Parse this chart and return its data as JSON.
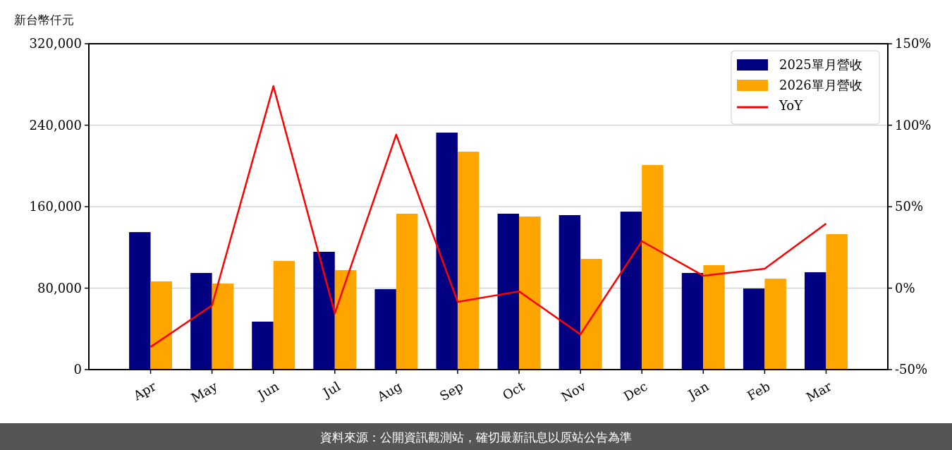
{
  "chart_data": {
    "type": "bar",
    "ylabel": "新台幣仟元",
    "categories": [
      "Apr",
      "May",
      "Jun",
      "Jul",
      "Aug",
      "Sep",
      "Oct",
      "Nov",
      "Dec",
      "Jan",
      "Feb",
      "Mar"
    ],
    "series": [
      {
        "name": "2025單月營收",
        "color": "#000080",
        "values": [
          135000,
          94900,
          47100,
          115700,
          79000,
          232700,
          153100,
          151700,
          155100,
          94900,
          79600,
          95600
        ]
      },
      {
        "name": "2026單月營收",
        "color": "#ffa500",
        "values": [
          86600,
          84500,
          106700,
          97700,
          153100,
          214000,
          150300,
          108700,
          200900,
          102500,
          89300,
          133000
        ]
      },
      {
        "name": "YoY",
        "type": "line",
        "axis": "y2",
        "color": "#ff0000",
        "values": [
          -36.1,
          -10.6,
          124,
          -15.4,
          94.2,
          -8.4,
          -2.0,
          -28.4,
          28.8,
          7.6,
          11.9,
          39.6
        ]
      }
    ],
    "ylim": [
      0,
      320000
    ],
    "yticks": [
      {
        "value": 0,
        "label": "0"
      },
      {
        "value": 80000,
        "label": "80,000"
      },
      {
        "value": 160000,
        "label": "160,000"
      },
      {
        "value": 240000,
        "label": "240,000"
      },
      {
        "value": 320000,
        "label": "320,000"
      }
    ],
    "y2lim": [
      -50,
      150
    ],
    "y2ticks": [
      {
        "value": -50,
        "label": "-50%"
      },
      {
        "value": 0,
        "label": "0%"
      },
      {
        "value": 50,
        "label": "50%"
      },
      {
        "value": 100,
        "label": "100%"
      },
      {
        "value": 150,
        "label": "150%"
      }
    ],
    "grid": "y",
    "legend": "top right",
    "annotations": [
      "資料來源：公開資訊觀測站，確切最新訊息以原站公告為準"
    ]
  }
}
